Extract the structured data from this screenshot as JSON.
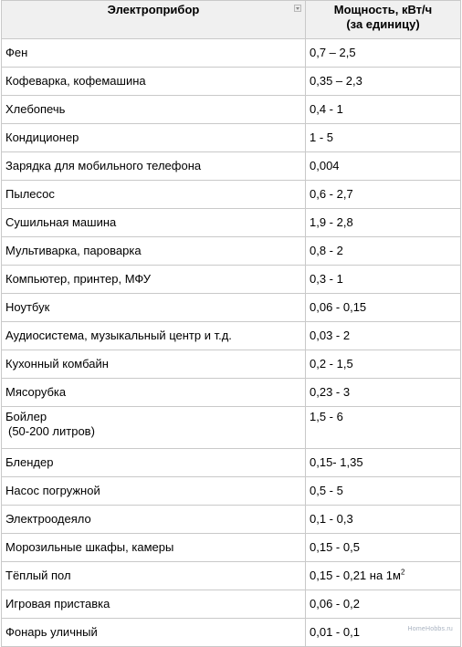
{
  "header": {
    "col1": "Электроприбор",
    "col2_line1": "Мощность, кВт/ч",
    "col2_line2": "(за единицу)"
  },
  "rows": [
    {
      "device": "Фен",
      "power": "0,7 – 2,5"
    },
    {
      "device": "Кофеварка, кофемашина",
      "power": "0,35 – 2,3"
    },
    {
      "device": "Хлебопечь",
      "power": "0,4 - 1"
    },
    {
      "device": "Кондиционер",
      "power": "1 - 5"
    },
    {
      "device": "Зарядка для мобильного телефона",
      "power": "0,004"
    },
    {
      "device": "Пылесос",
      "power": "0,6 - 2,7"
    },
    {
      "device": "Сушильная машина",
      "power": "1,9 - 2,8"
    },
    {
      "device": "Мультиварка, пароварка",
      "power": "0,8 - 2"
    },
    {
      "device": "Компьютер, принтер, МФУ",
      "power": "0,3 - 1"
    },
    {
      "device": "Ноутбук",
      "power": "0,06 - 0,15"
    },
    {
      "device": "Аудиосистема, музыкальный центр и т.д.",
      "power": "0,03 - 2"
    },
    {
      "device": "Кухонный комбайн",
      "power": "0,2 - 1,5"
    },
    {
      "device": "Мясорубка",
      "power": "0,23 - 3"
    },
    {
      "device": "Бойлер",
      "device_line2": "(50-200 литров)",
      "power": "1,5 - 6"
    },
    {
      "device": "Блендер",
      "power": "0,15- 1,35"
    },
    {
      "device": "Насос погружной",
      "power": "0,5 - 5"
    },
    {
      "device": "Электроодеяло",
      "power": "0,1  - 0,3"
    },
    {
      "device": "Морозильные шкафы, камеры",
      "power": "0,15 - 0,5"
    },
    {
      "device": "Тёплый пол",
      "power": "0,15 - 0,21 на 1м",
      "power_sup": "2"
    },
    {
      "device": "Игровая приставка",
      "power": "0,06 - 0,2"
    },
    {
      "device": "Фонарь уличный",
      "power": "0,01 - 0,1"
    }
  ],
  "watermark": "HomeHobbs.ru"
}
